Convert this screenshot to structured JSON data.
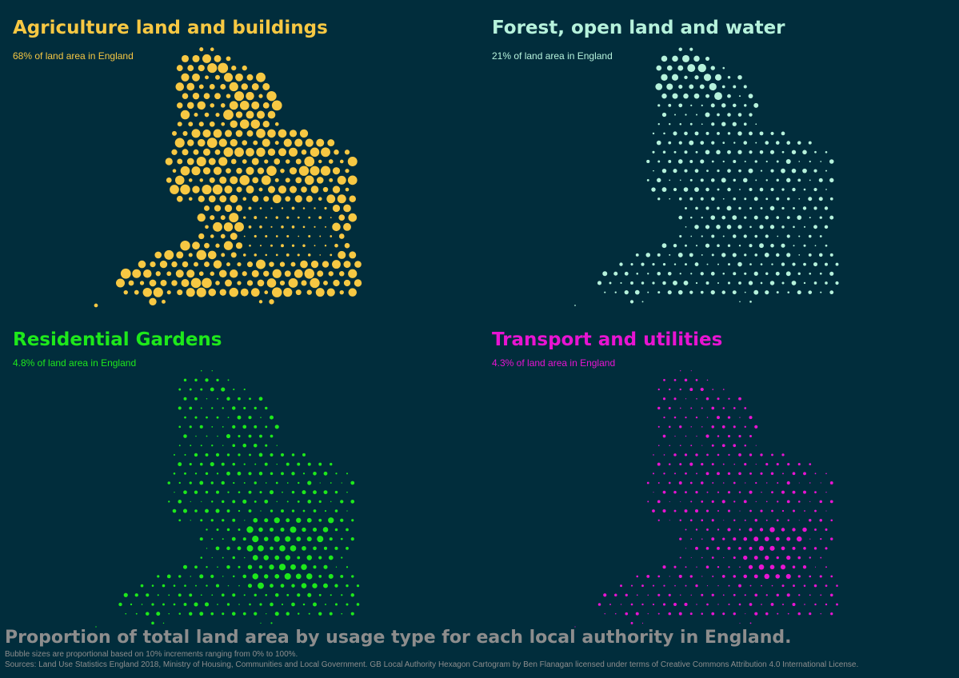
{
  "panels": [
    {
      "key": "agriculture",
      "title": "Agriculture land and buildings",
      "subtitle": "68% of land area in England",
      "color": "#f7c843",
      "level": 0.68
    },
    {
      "key": "forest",
      "title": "Forest, open land and water",
      "subtitle": "21% of land area in England",
      "color": "#b6f2dc",
      "level": 0.21
    },
    {
      "key": "gardens",
      "title": "Residential Gardens",
      "subtitle": "4.8% of land area in England",
      "color": "#1ee81b",
      "level": 0.048
    },
    {
      "key": "transport",
      "title": "Transport and utilities",
      "subtitle": "4.3% of land area in England",
      "color": "#e814d2",
      "level": 0.043
    }
  ],
  "footer": {
    "title": "Proportion of total land area by usage type for each local authority in England.",
    "note": "Bubble sizes are proportional based on 10% increments ranging from 0% to 100%.",
    "sources": "Sources: Land Use Statistics England 2018, Ministry of Housing, Communities and Local Government.  GB Local Authority Hexagon Cartogram by Ben Flanagan licensed under terms of Creative Commons Attribution 4.0 International License."
  }
}
